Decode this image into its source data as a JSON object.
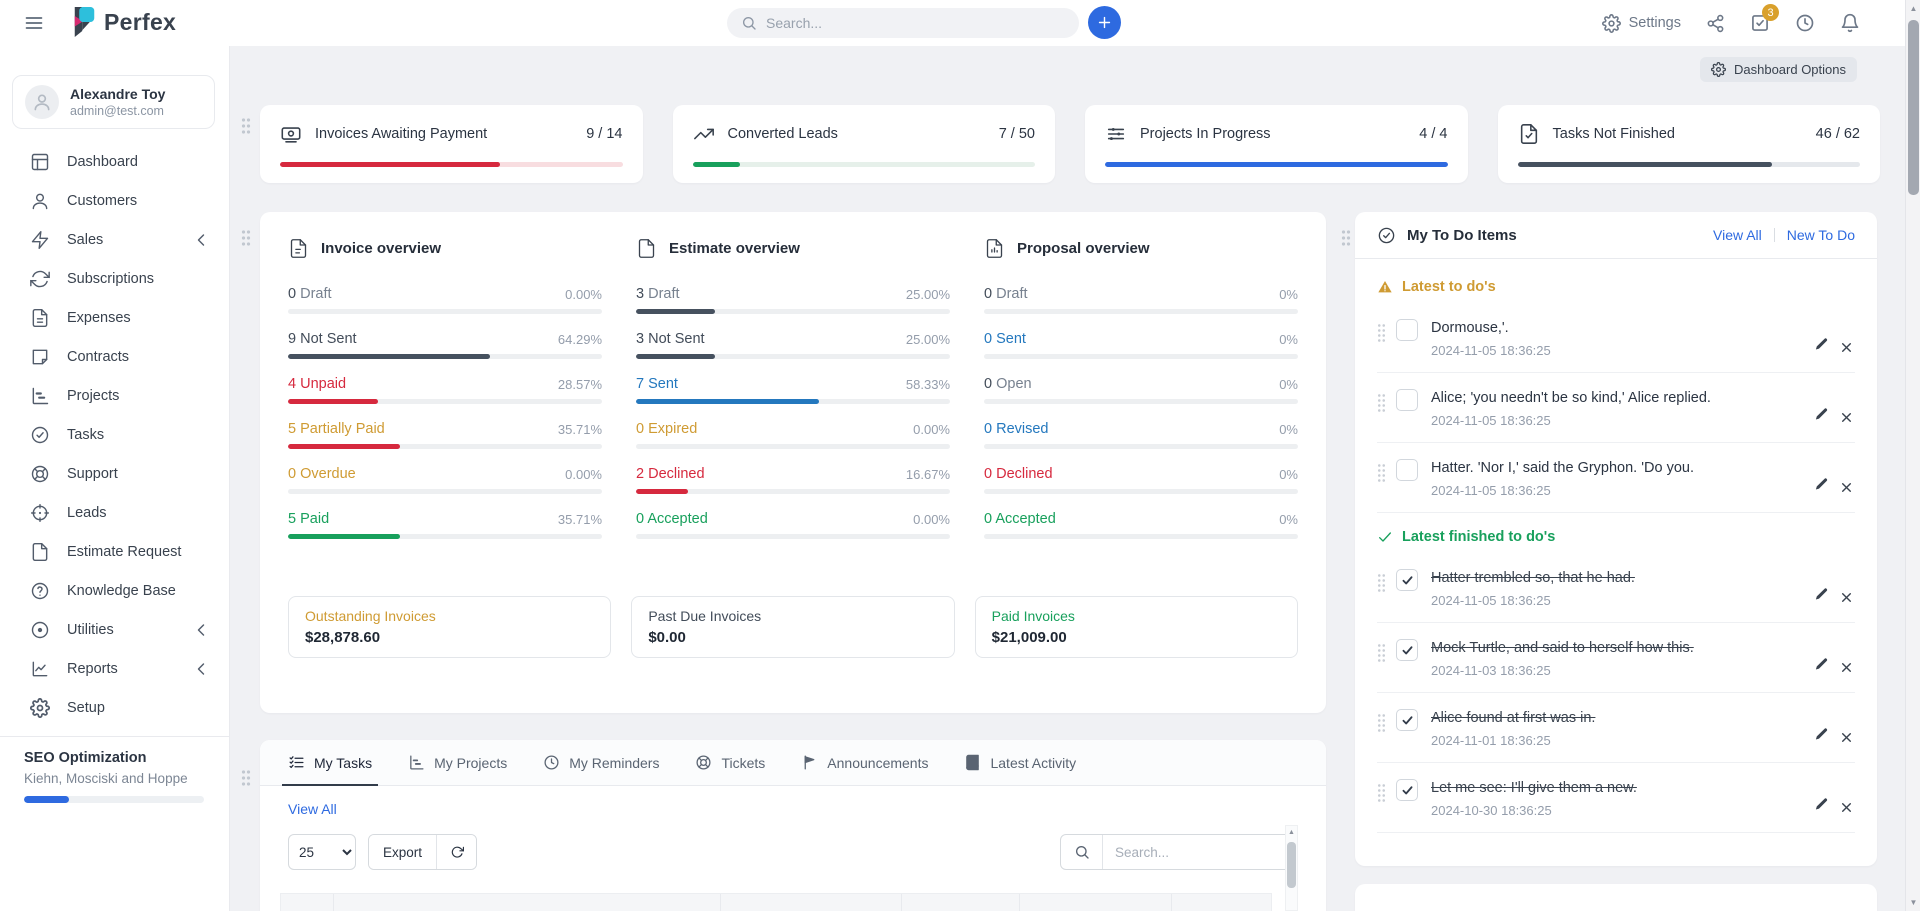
{
  "colors": {
    "primary": "#2e6ae0",
    "red": "#d6293e",
    "green": "#18a05c",
    "gold": "#cf9b33",
    "blue": "#2478be",
    "slate": "#46515f",
    "badge": "#d9a02b",
    "track": "#edeff1"
  },
  "navbar": {
    "brand": "Perfex",
    "search_placeholder": "Search...",
    "settings": "Settings",
    "todo_badge": "3",
    "icons": [
      "menu-icon",
      "search-icon",
      "plus-icon",
      "gear-icon",
      "share-icon",
      "todo-check-icon",
      "clock-icon",
      "bell-icon"
    ]
  },
  "sidebar": {
    "user": {
      "name": "Alexandre Toy",
      "email": "admin@test.com"
    },
    "items": [
      {
        "label": "Dashboard",
        "icon": "dashboard-icon",
        "chevron": false
      },
      {
        "label": "Customers",
        "icon": "customers-icon",
        "chevron": false
      },
      {
        "label": "Sales",
        "icon": "sales-icon",
        "chevron": true
      },
      {
        "label": "Subscriptions",
        "icon": "subscriptions-icon",
        "chevron": false
      },
      {
        "label": "Expenses",
        "icon": "expenses-icon",
        "chevron": false
      },
      {
        "label": "Contracts",
        "icon": "contracts-icon",
        "chevron": false
      },
      {
        "label": "Projects",
        "icon": "projects-icon",
        "chevron": false
      },
      {
        "label": "Tasks",
        "icon": "tasks-icon",
        "chevron": false
      },
      {
        "label": "Support",
        "icon": "support-icon",
        "chevron": false
      },
      {
        "label": "Leads",
        "icon": "leads-icon",
        "chevron": false
      },
      {
        "label": "Estimate Request",
        "icon": "estimate-request-icon",
        "chevron": false
      },
      {
        "label": "Knowledge Base",
        "icon": "knowledge-base-icon",
        "chevron": false
      },
      {
        "label": "Utilities",
        "icon": "utilities-icon",
        "chevron": true
      },
      {
        "label": "Reports",
        "icon": "reports-icon",
        "chevron": true
      },
      {
        "label": "Setup",
        "icon": "setup-icon",
        "chevron": false
      }
    ],
    "project": {
      "title": "SEO Optimization",
      "client": "Kiehn, Mosciski and Hoppe",
      "progress_pct": 25
    }
  },
  "main": {
    "dashboard_options": "Dashboard Options",
    "stat_cards": [
      {
        "title": "Invoices Awaiting Payment",
        "value": "9 / 14",
        "pct": 64.29,
        "color": "red",
        "icon": "banknote-icon"
      },
      {
        "title": "Converted Leads",
        "value": "7 / 50",
        "pct": 14,
        "color": "green",
        "icon": "trend-up-icon"
      },
      {
        "title": "Projects In Progress",
        "value": "4 / 4",
        "pct": 100,
        "color": "primary",
        "icon": "sliders-icon"
      },
      {
        "title": "Tasks Not Finished",
        "value": "46 / 62",
        "pct": 74.19,
        "color": "slate",
        "icon": "file-check-icon"
      }
    ],
    "overviews": [
      {
        "title": "Invoice overview",
        "icon": "file-lines-icon",
        "rows": [
          {
            "count": "0",
            "label": "Draft",
            "pct": 0,
            "pct_label": "0.00%"
          },
          {
            "count": "9",
            "label": "Not Sent",
            "pct": 64.29,
            "pct_label": "64.29%"
          },
          {
            "count": "4",
            "label": "Unpaid",
            "pct": 28.57,
            "pct_label": "28.57%"
          },
          {
            "count": "5",
            "label": "Partially Paid",
            "pct": 35.71,
            "pct_label": "35.71%"
          },
          {
            "count": "0",
            "label": "Overdue",
            "pct": 0,
            "pct_label": "0.00%"
          },
          {
            "count": "5",
            "label": "Paid",
            "pct": 35.71,
            "pct_label": "35.71%"
          }
        ]
      },
      {
        "title": "Estimate overview",
        "icon": "file-icon",
        "rows": [
          {
            "count": "3",
            "label": "Draft",
            "pct": 25,
            "pct_label": "25.00%"
          },
          {
            "count": "3",
            "label": "Not Sent",
            "pct": 25,
            "pct_label": "25.00%"
          },
          {
            "count": "7",
            "label": "Sent",
            "pct": 58.33,
            "pct_label": "58.33%"
          },
          {
            "count": "0",
            "label": "Expired",
            "pct": 0,
            "pct_label": "0.00%"
          },
          {
            "count": "2",
            "label": "Declined",
            "pct": 16.67,
            "pct_label": "16.67%"
          },
          {
            "count": "0",
            "label": "Accepted",
            "pct": 0,
            "pct_label": "0.00%"
          }
        ]
      },
      {
        "title": "Proposal overview",
        "icon": "file-chart-icon",
        "rows": [
          {
            "count": "0",
            "label": "Draft",
            "pct": 0,
            "pct_label": "0%"
          },
          {
            "count": "0",
            "label": "Sent",
            "pct": 0,
            "pct_label": "0%"
          },
          {
            "count": "0",
            "label": "Open",
            "pct": 0,
            "pct_label": "0%"
          },
          {
            "count": "0",
            "label": "Revised",
            "pct": 0,
            "pct_label": "0%"
          },
          {
            "count": "0",
            "label": "Declined",
            "pct": 0,
            "pct_label": "0%"
          },
          {
            "count": "0",
            "label": "Accepted",
            "pct": 0,
            "pct_label": "0%"
          }
        ]
      }
    ],
    "totals": [
      {
        "label": "Outstanding Invoices",
        "value": "$28,878.60"
      },
      {
        "label": "Past Due Invoices",
        "value": "$0.00"
      },
      {
        "label": "Paid Invoices",
        "value": "$21,009.00"
      }
    ],
    "tasks_panel": {
      "tabs": [
        {
          "label": "My Tasks",
          "icon": "list-check-icon"
        },
        {
          "label": "My Projects",
          "icon": "projects-icon"
        },
        {
          "label": "My Reminders",
          "icon": "clock-icon"
        },
        {
          "label": "Tickets",
          "icon": "life-buoy-icon"
        },
        {
          "label": "Announcements",
          "icon": "flag-icon"
        },
        {
          "label": "Latest Activity",
          "icon": "book-icon"
        }
      ],
      "view_all": "View All",
      "page_size": "25",
      "export_label": "Export",
      "search_placeholder": "Search..."
    },
    "todo_panel": {
      "title": "My To Do Items",
      "view_all": "View All",
      "new_todo": "New To Do",
      "pending_header": "Latest to do's",
      "finished_header": "Latest finished to do's",
      "pending": [
        {
          "title": "Dormouse,'.",
          "date": "2024-11-05 18:36:25"
        },
        {
          "title": "Alice; 'you needn't be so kind,' Alice replied.",
          "date": "2024-11-05 18:36:25"
        },
        {
          "title": "Hatter. 'Nor I,' said the Gryphon. 'Do you.",
          "date": "2024-11-05 18:36:25"
        }
      ],
      "finished": [
        {
          "title": "Hatter trembled so, that he had.",
          "date": "2024-11-05 18:36:25"
        },
        {
          "title": "Mock Turtle, and said to herself how this.",
          "date": "2024-11-03 18:36:25"
        },
        {
          "title": "Alice found at first was in.",
          "date": "2024-11-01 18:36:25"
        },
        {
          "title": "Let me see: I'll give them a new.",
          "date": "2024-10-30 18:36:25"
        }
      ]
    }
  }
}
